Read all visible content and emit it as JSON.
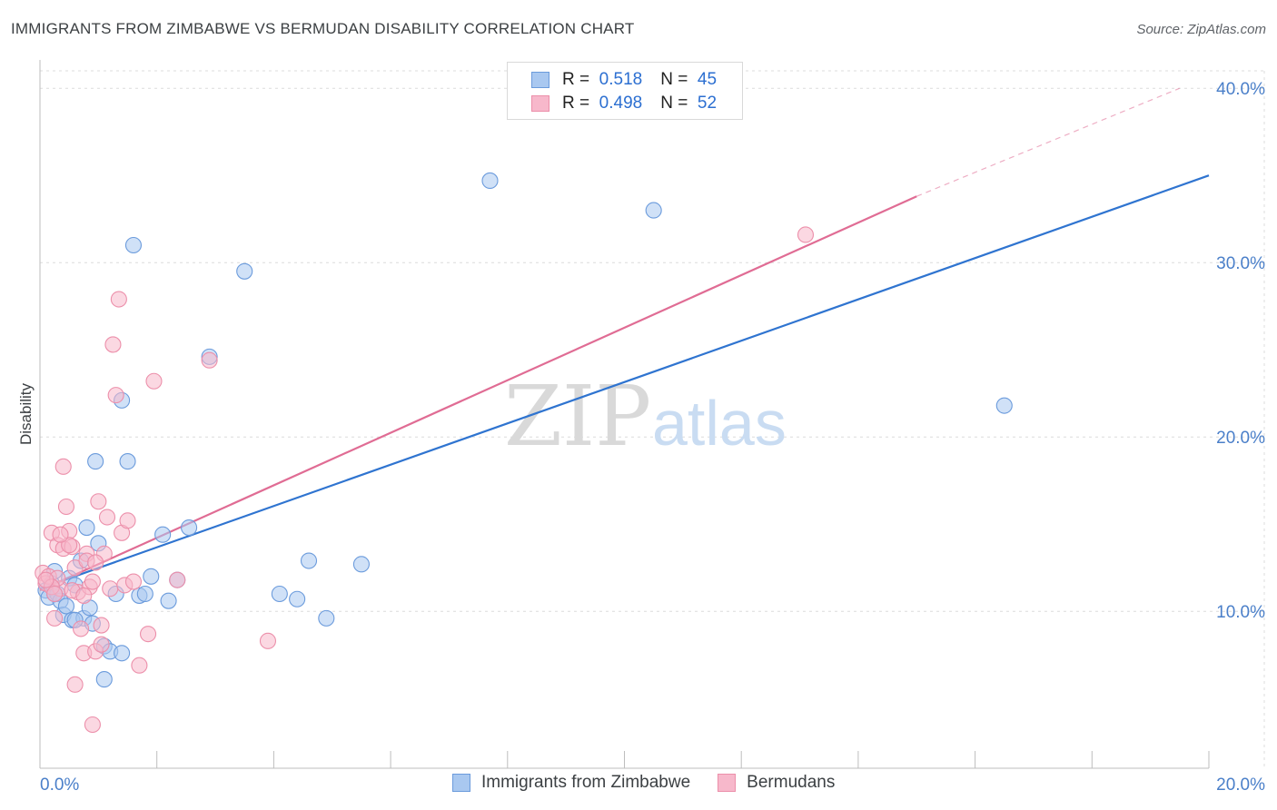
{
  "header": {
    "title": "IMMIGRANTS FROM ZIMBABWE VS BERMUDAN DISABILITY CORRELATION CHART",
    "source": "Source: ZipAtlas.com"
  },
  "watermark": {
    "zip": "ZIP",
    "atlas": "atlas"
  },
  "legend": {
    "series": [
      {
        "r_label": "R =",
        "r_value": "0.518",
        "n_label": "N =",
        "n_value": "45"
      },
      {
        "r_label": "R =",
        "r_value": "0.498",
        "n_label": "N =",
        "n_value": "52"
      }
    ]
  },
  "colors": {
    "blue_fill": "#a9c8f0",
    "blue_stroke": "#6b9bdc",
    "blue_line": "#2f74d0",
    "pink_fill": "#f7b8cb",
    "pink_stroke": "#ec8faa",
    "pink_line": "#e06c94",
    "axis_text": "#4a7fc9",
    "grid": "#dcdcdc"
  },
  "chart_data": {
    "type": "scatter",
    "title": "IMMIGRANTS FROM ZIMBABWE VS BERMUDAN DISABILITY CORRELATION CHART",
    "xlabel": "",
    "ylabel": "Disability",
    "xlim": [
      0,
      20
    ],
    "ylim": [
      1,
      41
    ],
    "x_tick_labels": [
      "0.0%",
      "20.0%"
    ],
    "y_ticks": [
      10,
      20,
      30,
      40
    ],
    "y_tick_labels": [
      "10.0%",
      "20.0%",
      "30.0%",
      "40.0%"
    ],
    "series": [
      {
        "name": "Immigrants from Zimbabwe",
        "r": 0.518,
        "n": 45,
        "trend": {
          "x": [
            0,
            20
          ],
          "y": [
            11.3,
            35.0
          ],
          "dashed_to": null
        },
        "points": [
          [
            0.1,
            11.2
          ],
          [
            0.15,
            10.8
          ],
          [
            0.2,
            11.6
          ],
          [
            0.25,
            12.3
          ],
          [
            0.3,
            11.0
          ],
          [
            0.35,
            10.6
          ],
          [
            0.4,
            9.8
          ],
          [
            0.45,
            10.3
          ],
          [
            0.5,
            11.9
          ],
          [
            0.55,
            9.5
          ],
          [
            0.6,
            11.5
          ],
          [
            0.7,
            12.9
          ],
          [
            0.75,
            9.6
          ],
          [
            0.8,
            14.8
          ],
          [
            0.85,
            10.2
          ],
          [
            0.9,
            9.3
          ],
          [
            1.0,
            13.9
          ],
          [
            1.1,
            8.0
          ],
          [
            1.2,
            7.7
          ],
          [
            1.3,
            11.0
          ],
          [
            1.4,
            7.6
          ],
          [
            1.5,
            18.6
          ],
          [
            1.6,
            31.0
          ],
          [
            1.7,
            10.9
          ],
          [
            1.8,
            11.0
          ],
          [
            1.9,
            12.0
          ],
          [
            2.1,
            14.4
          ],
          [
            2.2,
            10.6
          ],
          [
            2.35,
            11.8
          ],
          [
            2.55,
            14.8
          ],
          [
            2.9,
            24.6
          ],
          [
            3.5,
            29.5
          ],
          [
            4.1,
            11.0
          ],
          [
            4.4,
            10.7
          ],
          [
            4.6,
            12.9
          ],
          [
            4.9,
            9.6
          ],
          [
            5.5,
            12.7
          ],
          [
            7.7,
            34.7
          ],
          [
            10.5,
            33.0
          ],
          [
            16.5,
            21.8
          ],
          [
            1.4,
            22.1
          ],
          [
            1.1,
            6.1
          ],
          [
            0.95,
            18.6
          ],
          [
            0.6,
            9.5
          ],
          [
            0.25,
            11.0
          ]
        ]
      },
      {
        "name": "Bermudans",
        "r": 0.498,
        "n": 52,
        "trend": {
          "x": [
            0,
            15
          ],
          "y": [
            11.2,
            33.8
          ],
          "dashed_to": [
            19.5,
            40.0
          ]
        },
        "points": [
          [
            0.05,
            12.2
          ],
          [
            0.1,
            11.6
          ],
          [
            0.15,
            12.0
          ],
          [
            0.2,
            14.5
          ],
          [
            0.25,
            9.6
          ],
          [
            0.3,
            13.8
          ],
          [
            0.35,
            11.3
          ],
          [
            0.4,
            13.6
          ],
          [
            0.45,
            16.0
          ],
          [
            0.5,
            14.6
          ],
          [
            0.55,
            13.7
          ],
          [
            0.6,
            12.5
          ],
          [
            0.65,
            11.1
          ],
          [
            0.7,
            9.0
          ],
          [
            0.75,
            7.6
          ],
          [
            0.8,
            13.3
          ],
          [
            0.85,
            11.4
          ],
          [
            0.9,
            11.7
          ],
          [
            0.95,
            7.7
          ],
          [
            1.0,
            16.3
          ],
          [
            1.05,
            8.1
          ],
          [
            1.1,
            13.3
          ],
          [
            1.15,
            15.4
          ],
          [
            1.2,
            11.3
          ],
          [
            1.25,
            25.3
          ],
          [
            1.3,
            22.4
          ],
          [
            1.35,
            27.9
          ],
          [
            1.4,
            14.5
          ],
          [
            1.45,
            11.5
          ],
          [
            1.5,
            15.2
          ],
          [
            1.6,
            11.7
          ],
          [
            1.7,
            6.9
          ],
          [
            1.85,
            8.7
          ],
          [
            1.95,
            23.2
          ],
          [
            2.35,
            11.8
          ],
          [
            2.9,
            24.4
          ],
          [
            3.9,
            8.3
          ],
          [
            13.1,
            31.6
          ],
          [
            0.4,
            18.3
          ],
          [
            0.5,
            13.8
          ],
          [
            0.9,
            3.5
          ],
          [
            0.8,
            12.9
          ],
          [
            0.6,
            5.8
          ],
          [
            0.3,
            11.9
          ],
          [
            0.2,
            11.4
          ],
          [
            0.1,
            11.8
          ],
          [
            0.35,
            14.4
          ],
          [
            0.55,
            11.2
          ],
          [
            0.75,
            10.9
          ],
          [
            0.95,
            12.8
          ],
          [
            1.05,
            9.2
          ],
          [
            0.25,
            11.0
          ]
        ]
      }
    ]
  },
  "bottom_legend": [
    "Immigrants from Zimbabwe",
    "Bermudans"
  ]
}
